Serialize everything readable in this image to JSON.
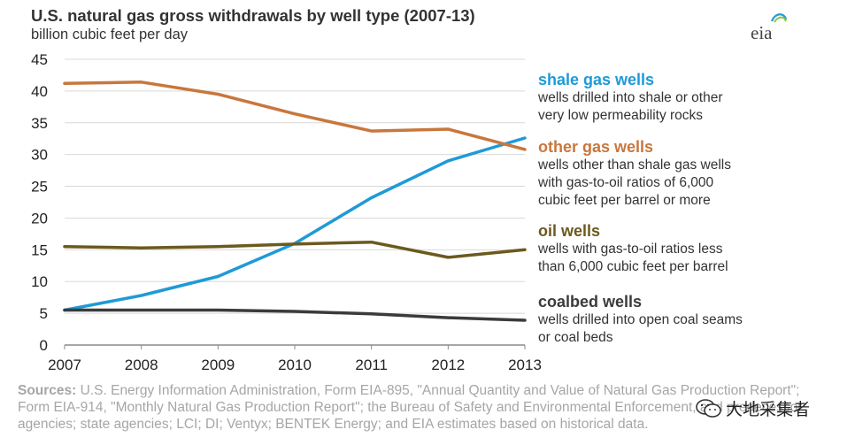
{
  "header": {
    "title": "U.S. natural gas gross  withdrawals by well type (2007-13)",
    "subtitle": "billion cubic feet per day"
  },
  "logo": {
    "text": "eia",
    "icon": "eia-swoosh-logo"
  },
  "chart_data": {
    "type": "line",
    "title": "U.S. natural gas gross  withdrawals by well type (2007-13)",
    "ylabel": "billion cubic feet per day",
    "xlabel": "",
    "x": [
      2007,
      2008,
      2009,
      2010,
      2011,
      2012,
      2013
    ],
    "xlim": [
      2007,
      2013
    ],
    "ylim": [
      0,
      45
    ],
    "y_ticks": [
      0,
      5,
      10,
      15,
      20,
      25,
      30,
      35,
      40,
      45
    ],
    "x_tick_labels": [
      "2007",
      "2008",
      "2009",
      "2010",
      "2011",
      "2012",
      "2013"
    ],
    "grid": "horizontal",
    "legend_position": "right",
    "series": [
      {
        "name": "shale gas wells",
        "color": "#1f9ad6",
        "values": [
          5.5,
          7.8,
          10.8,
          16.0,
          23.2,
          29.0,
          32.6
        ]
      },
      {
        "name": "other gas wells",
        "color": "#c8773d",
        "values": [
          41.2,
          41.4,
          39.5,
          36.4,
          33.7,
          34.0,
          30.8
        ]
      },
      {
        "name": "oil wells",
        "color": "#6b5a1e",
        "values": [
          15.5,
          15.3,
          15.5,
          15.9,
          16.2,
          13.8,
          15.0
        ]
      },
      {
        "name": "coalbed wells",
        "color": "#3b3b3b",
        "values": [
          5.5,
          5.5,
          5.5,
          5.3,
          4.9,
          4.3,
          3.9
        ]
      }
    ]
  },
  "legend": [
    {
      "name": "shale gas wells",
      "color": "#1f9ad6",
      "desc1": "wells drilled into shale or other",
      "desc2": "very  low permeability rocks"
    },
    {
      "name": "other gas wells",
      "color": "#c8773d",
      "desc1": "wells other than shale gas wells",
      "desc2": "with gas-to-oil ratios of 6,000",
      "desc3": "cubic feet per barrel  or more"
    },
    {
      "name": "oil wells",
      "color": "#6b5a1e",
      "desc1": "wells with gas-to-oil ratios less",
      "desc2": "than 6,000 cubic feet per barrel"
    },
    {
      "name": "coalbed wells",
      "color": "#3b3b3b",
      "desc1": "wells drilled into open coal seams",
      "desc2": "or coal beds"
    }
  ],
  "sources": {
    "label": "Sources:",
    "text": " U.S. Energy Information Administration, Form EIA-895, \"Annual Quantity and Value of Natural Gas Production Report\"; Form EIA-914, \"Monthly Natural Gas Production Report\"; the Bureau of Safety and Environmental Enforcement, and predecessor agencies; state agencies; LCI; DI; Ventyx; BENTEK Energy; and EIA estimates based on historical data."
  },
  "watermark": {
    "text": "大地采集者",
    "icon": "wechat-icon"
  }
}
